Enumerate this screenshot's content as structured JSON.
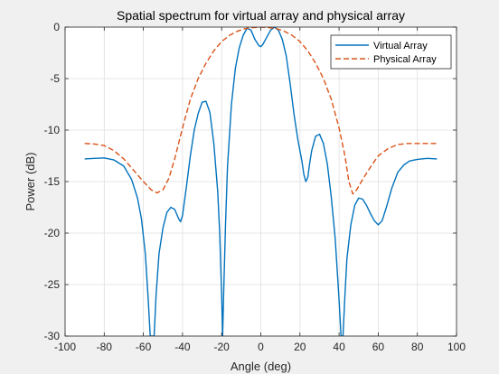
{
  "chart_data": {
    "type": "line",
    "title": "Spatial spectrum for virtual array and physical array",
    "xlabel": "Angle (deg)",
    "ylabel": "Power (dB)",
    "xlim": [
      -100,
      100
    ],
    "ylim": [
      -30,
      0
    ],
    "xticks": [
      -100,
      -80,
      -60,
      -40,
      -20,
      0,
      20,
      40,
      60,
      80,
      100
    ],
    "yticks": [
      0,
      -5,
      -10,
      -15,
      -20,
      -25,
      -30
    ],
    "grid": true,
    "legend_position": "top-right",
    "series": [
      {
        "name": "Virtual Array",
        "color": "#0072BD",
        "dash": "solid",
        "points": [
          [
            -90,
            -12.8
          ],
          [
            -85,
            -12.75
          ],
          [
            -80,
            -12.7
          ],
          [
            -75,
            -12.9
          ],
          [
            -70,
            -13.5
          ],
          [
            -66,
            -14.8
          ],
          [
            -63,
            -16.6
          ],
          [
            -61,
            -18.6
          ],
          [
            -59,
            -22.0
          ],
          [
            -57.5,
            -26.5
          ],
          [
            -56.5,
            -30
          ],
          [
            -54.5,
            -30
          ],
          [
            -53.5,
            -26.0
          ],
          [
            -52,
            -22.0
          ],
          [
            -50,
            -19.5
          ],
          [
            -48,
            -18.0
          ],
          [
            -46,
            -17.5
          ],
          [
            -44,
            -17.7
          ],
          [
            -42,
            -18.6
          ],
          [
            -41,
            -18.9
          ],
          [
            -40,
            -18.3
          ],
          [
            -38,
            -15.5
          ],
          [
            -36,
            -12.5
          ],
          [
            -34,
            -10.0
          ],
          [
            -32,
            -8.4
          ],
          [
            -30,
            -7.3
          ],
          [
            -28,
            -7.2
          ],
          [
            -26,
            -8.3
          ],
          [
            -24,
            -11.3
          ],
          [
            -22,
            -16.0
          ],
          [
            -21,
            -20.0
          ],
          [
            -20,
            -26.0
          ],
          [
            -19.5,
            -30
          ],
          [
            -19,
            -26.0
          ],
          [
            -18,
            -19.0
          ],
          [
            -17,
            -13.5
          ],
          [
            -15,
            -7.5
          ],
          [
            -13,
            -4.0
          ],
          [
            -11,
            -2.0
          ],
          [
            -9,
            -0.8
          ],
          [
            -7,
            -0.1
          ],
          [
            -5,
            -0.3
          ],
          [
            -3,
            -1.2
          ],
          [
            -1,
            -1.8
          ],
          [
            0,
            -1.9
          ],
          [
            1,
            -1.7
          ],
          [
            3,
            -1.0
          ],
          [
            5,
            -0.3
          ],
          [
            7,
            0
          ],
          [
            9,
            -0.3
          ],
          [
            11,
            -1.2
          ],
          [
            13,
            -2.8
          ],
          [
            15,
            -5.5
          ],
          [
            17,
            -8.5
          ],
          [
            19,
            -11.0
          ],
          [
            21,
            -13.0
          ],
          [
            22,
            -14.3
          ],
          [
            23,
            -15.0
          ],
          [
            24,
            -14.6
          ],
          [
            25,
            -13.2
          ],
          [
            26,
            -12.0
          ],
          [
            28,
            -10.6
          ],
          [
            30,
            -10.4
          ],
          [
            32,
            -11.3
          ],
          [
            34,
            -13.3
          ],
          [
            36,
            -16.5
          ],
          [
            38,
            -20.5
          ],
          [
            40,
            -26.5
          ],
          [
            41,
            -30
          ],
          [
            42,
            -30
          ],
          [
            43,
            -26.0
          ],
          [
            44,
            -22.5
          ],
          [
            46,
            -19.2
          ],
          [
            48,
            -17.3
          ],
          [
            50,
            -16.6
          ],
          [
            52,
            -16.7
          ],
          [
            54,
            -17.3
          ],
          [
            56,
            -18.1
          ],
          [
            58,
            -18.8
          ],
          [
            60,
            -19.2
          ],
          [
            62,
            -18.8
          ],
          [
            64,
            -17.6
          ],
          [
            67,
            -15.6
          ],
          [
            70,
            -14.1
          ],
          [
            73,
            -13.4
          ],
          [
            76,
            -13.0
          ],
          [
            80,
            -12.85
          ],
          [
            85,
            -12.75
          ],
          [
            90,
            -12.8
          ]
        ]
      },
      {
        "name": "Physical Array",
        "color": "#D95319",
        "dash": "dashed",
        "points": [
          [
            -90,
            -11.3
          ],
          [
            -85,
            -11.35
          ],
          [
            -80,
            -11.5
          ],
          [
            -75,
            -12.0
          ],
          [
            -70,
            -12.8
          ],
          [
            -65,
            -13.9
          ],
          [
            -60,
            -15.0
          ],
          [
            -56,
            -15.8
          ],
          [
            -53,
            -16.1
          ],
          [
            -50,
            -15.8
          ],
          [
            -47,
            -14.7
          ],
          [
            -44,
            -12.8
          ],
          [
            -40,
            -9.8
          ],
          [
            -36,
            -7.0
          ],
          [
            -32,
            -5.0
          ],
          [
            -28,
            -3.5
          ],
          [
            -24,
            -2.3
          ],
          [
            -20,
            -1.4
          ],
          [
            -16,
            -0.8
          ],
          [
            -12,
            -0.4
          ],
          [
            -8,
            -0.15
          ],
          [
            -4,
            -0.05
          ],
          [
            0,
            0
          ],
          [
            4,
            -0.05
          ],
          [
            8,
            -0.15
          ],
          [
            12,
            -0.4
          ],
          [
            16,
            -0.8
          ],
          [
            20,
            -1.4
          ],
          [
            24,
            -2.3
          ],
          [
            28,
            -3.5
          ],
          [
            32,
            -5.0
          ],
          [
            36,
            -7.0
          ],
          [
            40,
            -9.8
          ],
          [
            43,
            -12.5
          ],
          [
            45,
            -15.0
          ],
          [
            47,
            -16.2
          ],
          [
            49,
            -15.8
          ],
          [
            52,
            -14.8
          ],
          [
            56,
            -13.6
          ],
          [
            60,
            -12.5
          ],
          [
            65,
            -11.8
          ],
          [
            70,
            -11.4
          ],
          [
            75,
            -11.3
          ],
          [
            80,
            -11.3
          ],
          [
            85,
            -11.3
          ],
          [
            90,
            -11.3
          ]
        ]
      }
    ]
  }
}
